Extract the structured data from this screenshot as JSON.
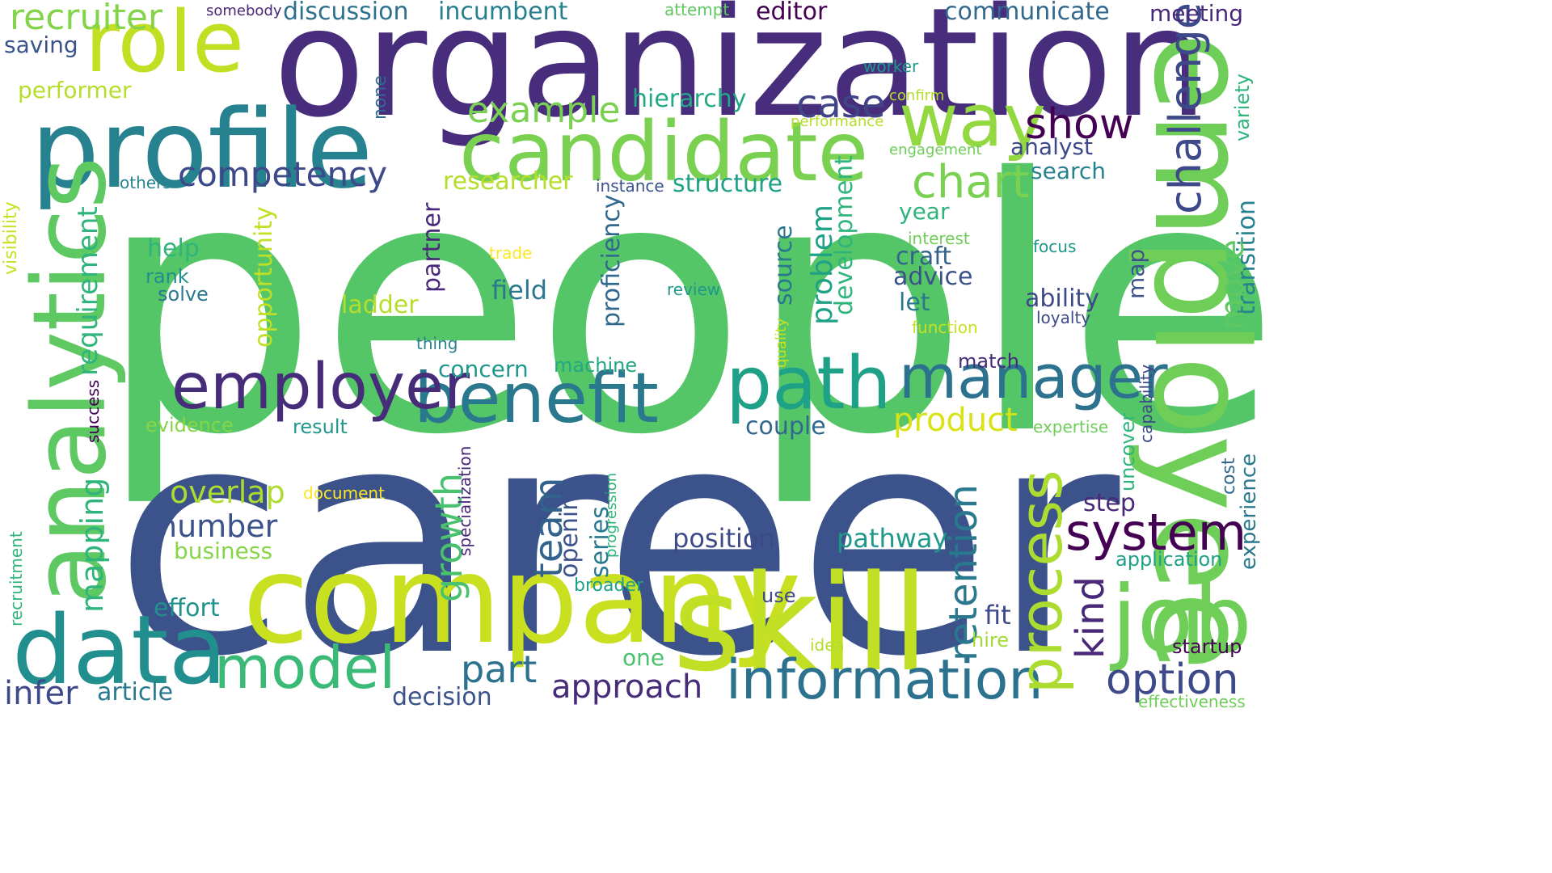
{
  "palette": [
    "#440154",
    "#482878",
    "#3e4a89",
    "#31688e",
    "#26828e",
    "#1f9e89",
    "#35b779",
    "#6ece58",
    "#b5de2b",
    "#fde725"
  ],
  "words": [
    {
      "text": "people",
      "color": "#55c667"
    },
    {
      "text": "career",
      "color": "#3b528b"
    },
    {
      "text": "organization",
      "color": "#472d7b"
    },
    {
      "text": "employee",
      "color": "#6ece58"
    },
    {
      "text": "profile",
      "color": "#26828e"
    },
    {
      "text": "analytics",
      "color": "#5ec962"
    },
    {
      "text": "company",
      "color": "#c8e020"
    },
    {
      "text": "skill",
      "color": "#c0df25"
    },
    {
      "text": "candidate",
      "color": "#7ad151"
    },
    {
      "text": "data",
      "color": "#218f8d"
    },
    {
      "text": "job",
      "color": "#6ece58"
    },
    {
      "text": "role",
      "color": "#c2df23"
    },
    {
      "text": "path",
      "color": "#1fa187"
    },
    {
      "text": "benefit",
      "color": "#2a788e"
    },
    {
      "text": "employer",
      "color": "#472c7a"
    },
    {
      "text": "way",
      "color": "#93d741"
    },
    {
      "text": "manager",
      "color": "#2c728e"
    },
    {
      "text": "information",
      "color": "#2c728e"
    },
    {
      "text": "model",
      "color": "#3aba76"
    },
    {
      "text": "system",
      "color": "#440154"
    },
    {
      "text": "process",
      "color": "#addc30"
    },
    {
      "text": "recruiter",
      "color": "#84d44b"
    },
    {
      "text": "chart",
      "color": "#7ad151"
    },
    {
      "text": "challenge",
      "color": "#3e4989"
    },
    {
      "text": "example",
      "color": "#7ad151"
    },
    {
      "text": "competency",
      "color": "#3e4989"
    },
    {
      "text": "case",
      "color": "#414487"
    },
    {
      "text": "show",
      "color": "#440154"
    },
    {
      "text": "product",
      "color": "#d8e219"
    },
    {
      "text": "growth",
      "color": "#4ac16d"
    },
    {
      "text": "retention",
      "color": "#2a788e"
    },
    {
      "text": "team",
      "color": "#33638d"
    },
    {
      "text": "kind",
      "color": "#482878"
    },
    {
      "text": "option",
      "color": "#3e4989"
    },
    {
      "text": "infer",
      "color": "#3e4989"
    },
    {
      "text": "mapping",
      "color": "#2fb47c"
    },
    {
      "text": "requirement",
      "color": "#2fb47c"
    },
    {
      "text": "overlap",
      "color": "#addc30"
    },
    {
      "text": "number",
      "color": "#3b528b"
    },
    {
      "text": "approach",
      "color": "#472c7a"
    },
    {
      "text": "part",
      "color": "#2c728e"
    },
    {
      "text": "pathway",
      "color": "#1f988b"
    },
    {
      "text": "position",
      "color": "#3e4989"
    },
    {
      "text": "discussion",
      "color": "#2c728e"
    },
    {
      "text": "incumbent",
      "color": "#27808e"
    },
    {
      "text": "editor",
      "color": "#440154"
    },
    {
      "text": "communicate",
      "color": "#31688e"
    },
    {
      "text": "meeting",
      "color": "#482878"
    },
    {
      "text": "saving",
      "color": "#3b528b"
    },
    {
      "text": "performer",
      "color": "#b5de2b"
    },
    {
      "text": "hierarchy",
      "color": "#22a884"
    },
    {
      "text": "analyst",
      "color": "#3e4989"
    },
    {
      "text": "search",
      "color": "#26828e"
    },
    {
      "text": "structure",
      "color": "#1fa187"
    },
    {
      "text": "researcher",
      "color": "#b5de2b"
    },
    {
      "text": "year",
      "color": "#2fb47c"
    },
    {
      "text": "craft",
      "color": "#33638d"
    },
    {
      "text": "advice",
      "color": "#3b528b"
    },
    {
      "text": "let",
      "color": "#2a788e"
    },
    {
      "text": "ability",
      "color": "#3e4989"
    },
    {
      "text": "field",
      "color": "#2a788e"
    },
    {
      "text": "ladder",
      "color": "#b5de2b"
    },
    {
      "text": "help",
      "color": "#2fb47c"
    },
    {
      "text": "rank",
      "color": "#218f8d"
    },
    {
      "text": "solve",
      "color": "#2a788e"
    },
    {
      "text": "concern",
      "color": "#1f988b"
    },
    {
      "text": "machine",
      "color": "#22a884"
    },
    {
      "text": "match",
      "color": "#472c7a"
    },
    {
      "text": "couple",
      "color": "#31688e"
    },
    {
      "text": "fit",
      "color": "#3e4989"
    },
    {
      "text": "hire",
      "color": "#a2da37"
    },
    {
      "text": "step",
      "color": "#482878"
    },
    {
      "text": "application",
      "color": "#1fa187"
    },
    {
      "text": "startup",
      "color": "#440154"
    },
    {
      "text": "effectiveness",
      "color": "#6ece58"
    },
    {
      "text": "one",
      "color": "#4ac16d"
    },
    {
      "text": "use",
      "color": "#3e4989"
    },
    {
      "text": "broader",
      "color": "#1fa187"
    },
    {
      "text": "idea",
      "color": "#b5de2b"
    },
    {
      "text": "decision",
      "color": "#3b528b"
    },
    {
      "text": "article",
      "color": "#2a788e"
    },
    {
      "text": "business",
      "color": "#86d549"
    },
    {
      "text": "effort",
      "color": "#21918c"
    },
    {
      "text": "result",
      "color": "#1f988b"
    },
    {
      "text": "evidence",
      "color": "#86d549"
    },
    {
      "text": "document",
      "color": "#fde725"
    },
    {
      "text": "others",
      "color": "#26828e"
    },
    {
      "text": "instance",
      "color": "#3b528b"
    },
    {
      "text": "thing",
      "color": "#26828e"
    },
    {
      "text": "review",
      "color": "#1f988b"
    },
    {
      "text": "trade",
      "color": "#fde725"
    },
    {
      "text": "interest",
      "color": "#6ece58"
    },
    {
      "text": "focus",
      "color": "#1f988b"
    },
    {
      "text": "loyalty",
      "color": "#3e4989"
    },
    {
      "text": "function",
      "color": "#c8e020"
    },
    {
      "text": "expertise",
      "color": "#6ece58"
    },
    {
      "text": "engagement",
      "color": "#6ece58"
    },
    {
      "text": "confirm",
      "color": "#b5de2b"
    },
    {
      "text": "performance",
      "color": "#b5de2b"
    },
    {
      "text": "worker",
      "color": "#1f988b"
    },
    {
      "text": "attempt",
      "color": "#5ec962"
    },
    {
      "text": "somebody",
      "color": "#482878"
    },
    {
      "text": "variety",
      "color": "#2fb47c"
    },
    {
      "text": "transition",
      "color": "#26828e"
    },
    {
      "text": "experience",
      "color": "#2a788e"
    },
    {
      "text": "cost",
      "color": "#31688e"
    },
    {
      "text": "capability",
      "color": "#3e4989"
    },
    {
      "text": "uncover",
      "color": "#2fb47c"
    },
    {
      "text": "map",
      "color": "#3b528b"
    },
    {
      "text": "move",
      "color": "#5ec962"
    },
    {
      "text": "development",
      "color": "#2fb47c"
    },
    {
      "text": "problem",
      "color": "#1fa187"
    },
    {
      "text": "source",
      "color": "#2a788e"
    },
    {
      "text": "proficiency",
      "color": "#31688e"
    },
    {
      "text": "partner",
      "color": "#482878"
    },
    {
      "text": "opportunity",
      "color": "#c0df25"
    },
    {
      "text": "none",
      "color": "#31688e"
    },
    {
      "text": "visibility",
      "color": "#c8e020"
    },
    {
      "text": "success",
      "color": "#440154"
    },
    {
      "text": "recruitment",
      "color": "#2fb47c"
    },
    {
      "text": "specialization",
      "color": "#482878"
    },
    {
      "text": "progression",
      "color": "#2fb47c"
    },
    {
      "text": "opening",
      "color": "#3b528b"
    },
    {
      "text": "series",
      "color": "#2a788e"
    },
    {
      "text": "quality",
      "color": "#c8e020"
    }
  ]
}
